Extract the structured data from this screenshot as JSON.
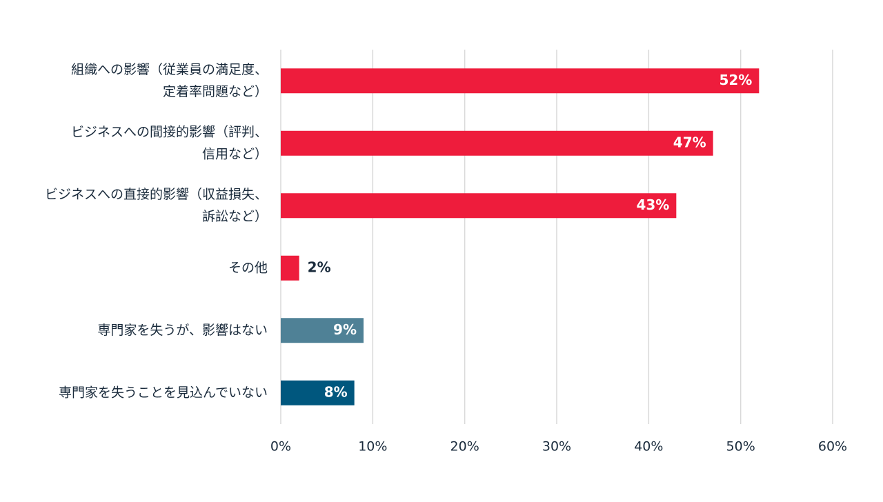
{
  "chart_data": {
    "type": "hbar",
    "categories": [
      [
        "組織への影響（従業員の満足度、",
        "定着率問題など）"
      ],
      [
        "ビジネスへの間接的影響（評判、",
        "信用など）"
      ],
      [
        "ビジネスへの直接的影響（収益損失、",
        "訴訟など）"
      ],
      [
        "その他"
      ],
      [
        "専門家を失うが、影響はない"
      ],
      [
        "専門家を失うことを見込んでいない"
      ]
    ],
    "values": [
      52,
      47,
      43,
      2,
      9,
      8
    ],
    "value_labels": [
      "52%",
      "47%",
      "43%",
      "2%",
      "9%",
      "8%"
    ],
    "colors": [
      "#ee1c3c",
      "#ee1c3c",
      "#ee1c3c",
      "#ee1c3c",
      "#4f8196",
      "#00577e"
    ],
    "xlim": [
      0,
      60
    ],
    "xticks": [
      {
        "value": 0,
        "label": "0%"
      },
      {
        "value": 10,
        "label": "10%"
      },
      {
        "value": 20,
        "label": "20%"
      },
      {
        "value": 30,
        "label": "30%"
      },
      {
        "value": 40,
        "label": "40%"
      },
      {
        "value": 50,
        "label": "50%"
      },
      {
        "value": 60,
        "label": "60%"
      }
    ],
    "grid": true
  }
}
